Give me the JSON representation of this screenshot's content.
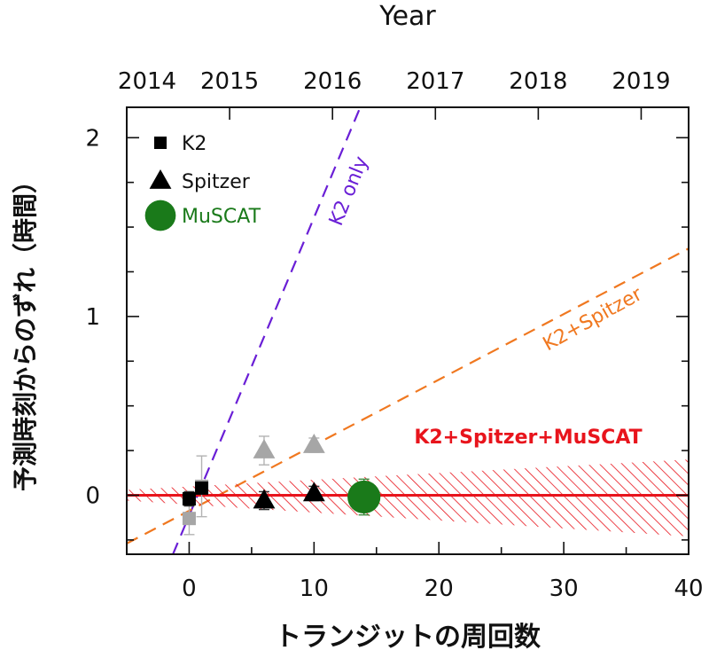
{
  "chart_data": {
    "type": "scatter",
    "xlabel": "トランジットの周回数",
    "ylabel": "予測時刻からのずれ（時間）",
    "top_axis_label": "Year",
    "xlim": [
      -5,
      40
    ],
    "ylim": [
      -0.33,
      2.17
    ],
    "x_ticks": [
      0,
      10,
      20,
      30,
      40
    ],
    "y_ticks": [
      0,
      1,
      2
    ],
    "top_ticks": [
      {
        "label": "2014",
        "x": -5
      },
      {
        "label": "2015",
        "x": 3.24
      },
      {
        "label": "2016",
        "x": 11.48
      },
      {
        "label": "2017",
        "x": 19.72
      },
      {
        "label": "2018",
        "x": 27.96
      },
      {
        "label": "2019",
        "x": 36.2
      }
    ],
    "legend": [
      {
        "label": "K2",
        "marker": "square",
        "color": "#000000"
      },
      {
        "label": "Spitzer",
        "marker": "triangle",
        "color": "#000000"
      },
      {
        "label": "MuSCAT",
        "marker": "circle",
        "color": "#1a7a1a"
      }
    ],
    "series": [
      {
        "name": "K2",
        "marker": "square",
        "color": "#000000",
        "points": [
          {
            "x": 0,
            "y": -0.02,
            "err": 0.04
          },
          {
            "x": 1,
            "y": 0.04,
            "err": 0.03
          }
        ]
      },
      {
        "name": "Spitzer",
        "marker": "triangle",
        "color": "#000000",
        "points": [
          {
            "x": 6,
            "y": -0.03,
            "err": 0.05
          },
          {
            "x": 10,
            "y": 0.01,
            "err": 0.04
          }
        ]
      },
      {
        "name": "MuSCAT",
        "marker": "circle",
        "color": "#1a7a1a",
        "points": [
          {
            "x": 14,
            "y": -0.01,
            "err": 0.1
          }
        ]
      },
      {
        "marker": "square",
        "color": "#a6a6a6",
        "points": [
          {
            "x": 0,
            "y": -0.13,
            "err": 0.09
          },
          {
            "x": 1,
            "y": 0.05,
            "err": 0.17
          }
        ]
      },
      {
        "marker": "triangle",
        "color": "#a6a6a6",
        "points": [
          {
            "x": 6,
            "y": 0.25,
            "err": 0.08
          },
          {
            "x": 10,
            "y": 0.28,
            "err": 0.04
          }
        ]
      }
    ],
    "lines": [
      {
        "label": "K2 only",
        "color": "#6a1fd6",
        "style": "dashed",
        "x": [
          -1.3,
          13.7
        ],
        "y": [
          -0.33,
          2.17
        ]
      },
      {
        "label": "K2+Spitzer",
        "color": "#f07820",
        "style": "dashed",
        "x": [
          -5,
          40
        ],
        "y": [
          -0.27,
          1.38
        ]
      },
      {
        "label": "K2+Spitzer+MuSCAT",
        "color": "#e8141c",
        "style": "solid",
        "x": [
          -5,
          40
        ],
        "y": [
          0,
          0
        ],
        "band": {
          "x": [
            -5,
            40
          ],
          "lower": [
            -0.03,
            -0.23
          ],
          "upper": [
            0.03,
            0.2
          ]
        }
      }
    ]
  }
}
